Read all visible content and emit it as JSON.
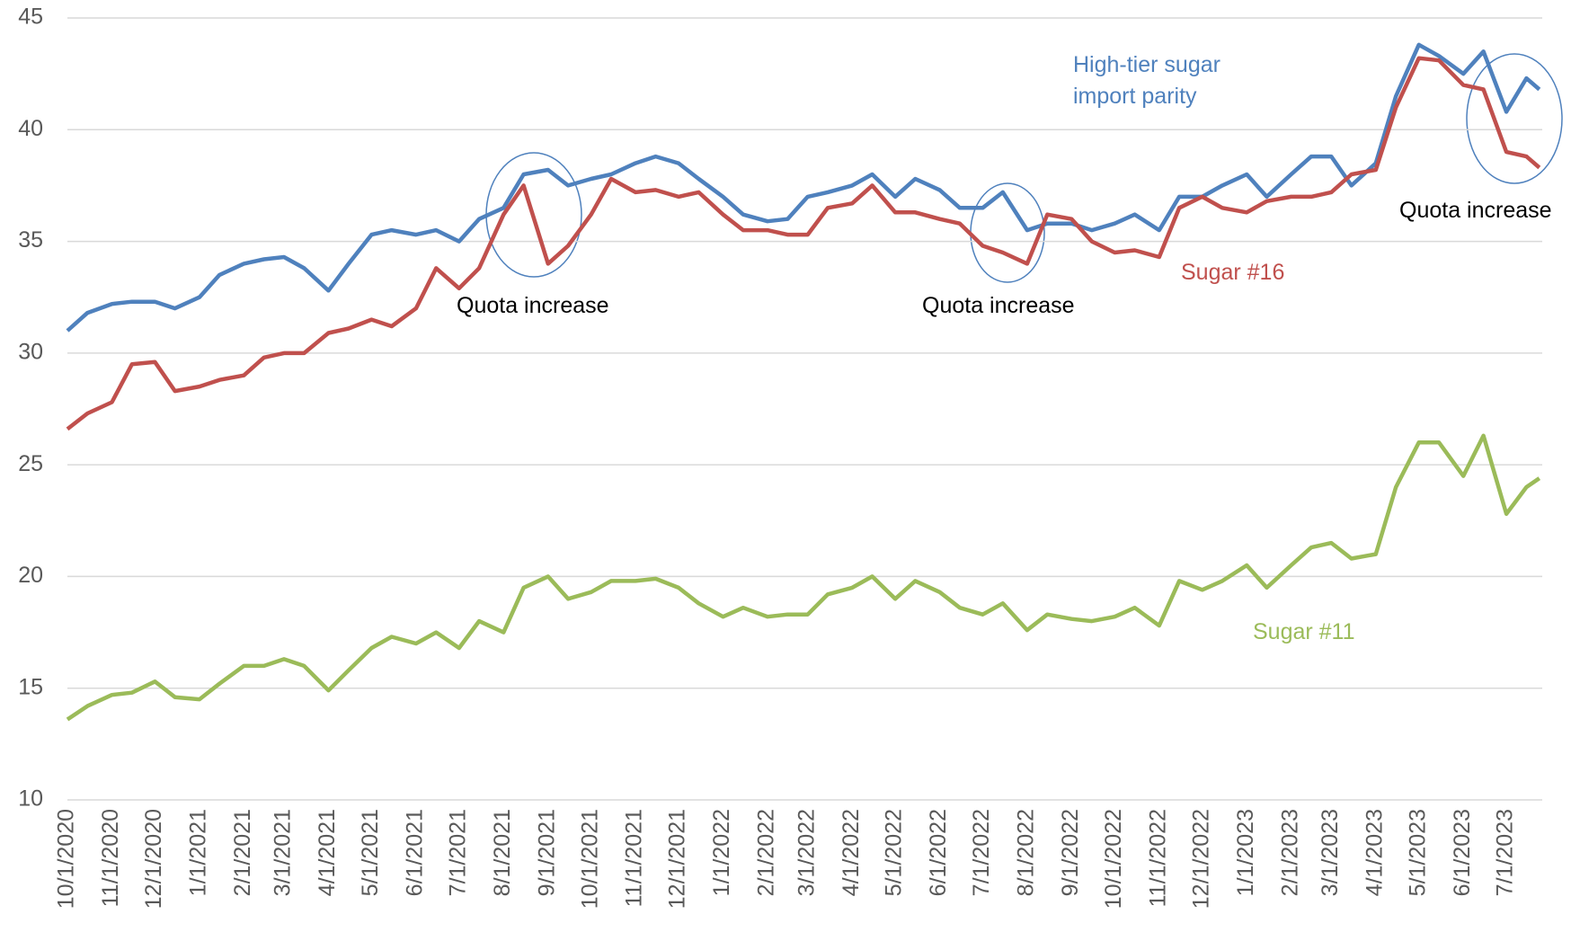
{
  "chart_data": {
    "type": "line",
    "x": [
      "10/1/2020",
      "10/15/2020",
      "11/1/2020",
      "11/15/2020",
      "12/1/2020",
      "12/15/2020",
      "1/1/2021",
      "1/15/2021",
      "2/1/2021",
      "2/15/2021",
      "3/1/2021",
      "3/15/2021",
      "4/1/2021",
      "4/15/2021",
      "5/1/2021",
      "5/15/2021",
      "6/1/2021",
      "6/15/2021",
      "7/1/2021",
      "7/15/2021",
      "8/1/2021",
      "8/15/2021",
      "9/1/2021",
      "9/15/2021",
      "10/1/2021",
      "10/15/2021",
      "11/1/2021",
      "11/15/2021",
      "12/1/2021",
      "12/15/2021",
      "1/1/2022",
      "1/15/2022",
      "2/1/2022",
      "2/15/2022",
      "3/1/2022",
      "3/15/2022",
      "4/1/2022",
      "4/15/2022",
      "5/1/2022",
      "5/15/2022",
      "6/1/2022",
      "6/15/2022",
      "7/1/2022",
      "7/15/2022",
      "8/1/2022",
      "8/15/2022",
      "9/1/2022",
      "9/15/2022",
      "10/1/2022",
      "10/15/2022",
      "11/1/2022",
      "11/15/2022",
      "12/1/2022",
      "12/15/2022",
      "1/1/2023",
      "1/15/2023",
      "2/1/2023",
      "2/15/2023",
      "3/1/2023",
      "3/15/2023",
      "4/1/2023",
      "4/15/2023",
      "5/1/2023",
      "5/15/2023",
      "6/1/2023",
      "6/15/2023",
      "7/1/2023",
      "7/15/2023",
      "7/24/2023"
    ],
    "series": [
      {
        "name": "High-tier sugar import parity",
        "color": "#4f81bd",
        "values": [
          31.0,
          31.8,
          32.2,
          32.3,
          32.3,
          32.0,
          32.5,
          33.5,
          34.0,
          34.2,
          34.3,
          33.8,
          32.8,
          34.0,
          35.3,
          35.5,
          35.3,
          35.5,
          35.0,
          36.0,
          36.5,
          38.0,
          38.2,
          37.5,
          37.8,
          38.0,
          38.5,
          38.8,
          38.5,
          37.8,
          37.0,
          36.2,
          35.9,
          36.0,
          37.0,
          37.2,
          37.5,
          38.0,
          37.0,
          37.8,
          37.3,
          36.5,
          36.5,
          37.2,
          35.5,
          35.8,
          35.8,
          35.5,
          35.8,
          36.2,
          35.5,
          37.0,
          37.0,
          37.5,
          38.0,
          37.0,
          38.0,
          38.8,
          38.8,
          37.5,
          38.5,
          41.5,
          43.8,
          43.3,
          42.5,
          43.5,
          40.8,
          42.3,
          41.8
        ]
      },
      {
        "name": "Sugar #16",
        "color": "#c0504d",
        "values": [
          26.6,
          27.3,
          27.8,
          29.5,
          29.6,
          28.3,
          28.5,
          28.8,
          29.0,
          29.8,
          30.0,
          30.0,
          30.9,
          31.1,
          31.5,
          31.2,
          32.0,
          33.8,
          32.9,
          33.8,
          36.2,
          37.5,
          34.0,
          34.8,
          36.2,
          37.8,
          37.2,
          37.3,
          37.0,
          37.2,
          36.2,
          35.5,
          35.5,
          35.3,
          35.3,
          36.5,
          36.7,
          37.5,
          36.3,
          36.3,
          36.0,
          35.8,
          34.8,
          34.5,
          34.0,
          36.2,
          36.0,
          35.0,
          34.5,
          34.6,
          34.3,
          36.5,
          37.0,
          36.5,
          36.3,
          36.8,
          37.0,
          37.0,
          37.2,
          38.0,
          38.2,
          41.0,
          43.2,
          43.1,
          42.0,
          41.8,
          39.0,
          38.8,
          38.3
        ]
      },
      {
        "name": "Sugar #11",
        "color": "#9bbb59",
        "values": [
          13.6,
          14.2,
          14.7,
          14.8,
          15.3,
          14.6,
          14.5,
          15.2,
          16.0,
          16.0,
          16.3,
          16.0,
          14.9,
          15.8,
          16.8,
          17.3,
          17.0,
          17.5,
          16.8,
          18.0,
          17.5,
          19.5,
          20.0,
          19.0,
          19.3,
          19.8,
          19.8,
          19.9,
          19.5,
          18.8,
          18.2,
          18.6,
          18.2,
          18.3,
          18.3,
          19.2,
          19.5,
          20.0,
          19.0,
          19.8,
          19.3,
          18.6,
          18.3,
          18.8,
          17.6,
          18.3,
          18.1,
          18.0,
          18.2,
          18.6,
          17.8,
          19.8,
          19.4,
          19.8,
          20.5,
          19.5,
          20.5,
          21.3,
          21.5,
          20.8,
          21.0,
          24.0,
          26.0,
          26.0,
          24.5,
          26.3,
          22.8,
          24.0,
          24.4
        ]
      }
    ],
    "annotations": [
      "Quota increase",
      "Quota increase",
      "Quota increase"
    ],
    "xlim": [
      "10/1/2020",
      "7/26/2023"
    ],
    "xticks": [
      "10/1/2020",
      "11/1/2020",
      "12/1/2020",
      "1/1/2021",
      "2/1/2021",
      "3/1/2021",
      "4/1/2021",
      "5/1/2021",
      "6/1/2021",
      "7/1/2021",
      "8/1/2021",
      "9/1/2021",
      "10/1/2021",
      "11/1/2021",
      "12/1/2021",
      "1/1/2022",
      "2/1/2022",
      "3/1/2022",
      "4/1/2022",
      "5/1/2022",
      "6/1/2022",
      "7/1/2022",
      "8/1/2022",
      "9/1/2022",
      "10/1/2022",
      "11/1/2022",
      "12/1/2022",
      "1/1/2023",
      "2/1/2023",
      "3/1/2023",
      "4/1/2023",
      "5/1/2023",
      "6/1/2023",
      "7/1/2023"
    ],
    "ylim": [
      10,
      45
    ],
    "yticks": [
      10,
      15,
      20,
      25,
      30,
      35,
      40,
      45
    ],
    "grid": true
  }
}
